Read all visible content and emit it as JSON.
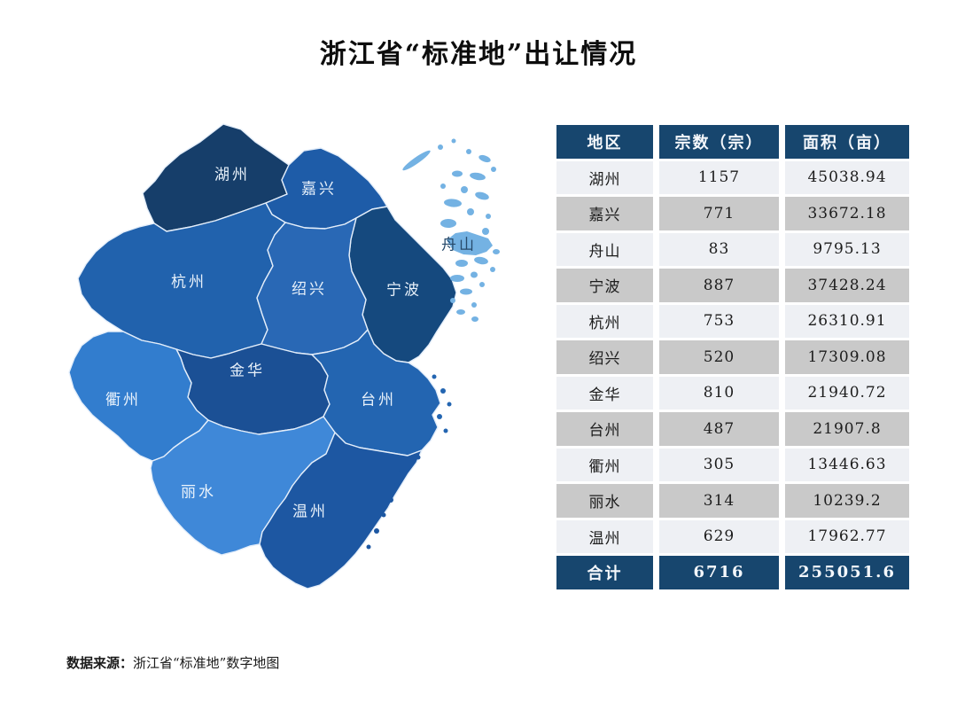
{
  "title": "浙江省“标准地”出让情况",
  "footer": {
    "label": "数据来源：",
    "text": "浙江省“标准地”数字地图"
  },
  "colors": {
    "navy": "#17466e",
    "row_light": "#eef0f4",
    "row_gray": "#c9c9c9",
    "map_border": "#e4eefa"
  },
  "table": {
    "headers": [
      "地区",
      "宗数（宗）",
      "面积（亩）"
    ],
    "rows": [
      [
        "湖州",
        "1157",
        "45038.94"
      ],
      [
        "嘉兴",
        "771",
        "33672.18"
      ],
      [
        "舟山",
        "83",
        "9795.13"
      ],
      [
        "宁波",
        "887",
        "37428.24"
      ],
      [
        "杭州",
        "753",
        "26310.91"
      ],
      [
        "绍兴",
        "520",
        "17309.08"
      ],
      [
        "金华",
        "810",
        "21940.72"
      ],
      [
        "台州",
        "487",
        "21907.8"
      ],
      [
        "衢州",
        "305",
        "13446.63"
      ],
      [
        "丽水",
        "314",
        "10239.2"
      ],
      [
        "温州",
        "629",
        "17962.77"
      ]
    ],
    "total": [
      "合计",
      "6716",
      "255051.6"
    ]
  },
  "map": {
    "regions": [
      {
        "id": "huzhou",
        "name": "湖州",
        "color": "#163e6a",
        "label_color": "#e8f1fa"
      },
      {
        "id": "jiaxing",
        "name": "嘉兴",
        "color": "#1e5ca8",
        "label_color": "#e8f1fa"
      },
      {
        "id": "ningbo",
        "name": "宁波",
        "color": "#15497e",
        "label_color": "#e8f1fa"
      },
      {
        "id": "hangzhou",
        "name": "杭州",
        "color": "#2162ad",
        "label_color": "#e8f1fa"
      },
      {
        "id": "shaoxing",
        "name": "绍兴",
        "color": "#2968b5",
        "label_color": "#e8f1fa"
      },
      {
        "id": "jinhua",
        "name": "金华",
        "color": "#1b5095",
        "label_color": "#e8f1fa"
      },
      {
        "id": "taizhou",
        "name": "台州",
        "color": "#2365b1",
        "label_color": "#e8f1fa"
      },
      {
        "id": "quzhou",
        "name": "衢州",
        "color": "#327dce",
        "label_color": "#eaf3fc"
      },
      {
        "id": "lishui",
        "name": "丽水",
        "color": "#3f88d8",
        "label_color": "#eaf3fc"
      },
      {
        "id": "wenzhou",
        "name": "温州",
        "color": "#1d57a2",
        "label_color": "#e8f1fa"
      },
      {
        "id": "zhoushan",
        "name": "舟山",
        "color": "#74b2e3",
        "label_color": "#274a6b"
      }
    ]
  },
  "chart_data": {
    "type": "table",
    "title": "浙江省“标准地”出让情况",
    "columns": [
      "地区",
      "宗数（宗）",
      "面积（亩）"
    ],
    "regions": [
      "湖州",
      "嘉兴",
      "舟山",
      "宁波",
      "杭州",
      "绍兴",
      "金华",
      "台州",
      "衢州",
      "丽水",
      "温州"
    ],
    "series": [
      {
        "name": "宗数（宗）",
        "values": [
          1157,
          771,
          83,
          887,
          753,
          520,
          810,
          487,
          305,
          314,
          629
        ]
      },
      {
        "name": "面积（亩）",
        "values": [
          45038.94,
          33672.18,
          9795.13,
          37428.24,
          26310.91,
          17309.08,
          21940.72,
          21907.8,
          13446.63,
          10239.2,
          17962.77
        ]
      }
    ],
    "total": {
      "label": "合计",
      "宗数": 6716,
      "面积": 255051.6
    },
    "source": "浙江省“标准地”数字地图"
  }
}
